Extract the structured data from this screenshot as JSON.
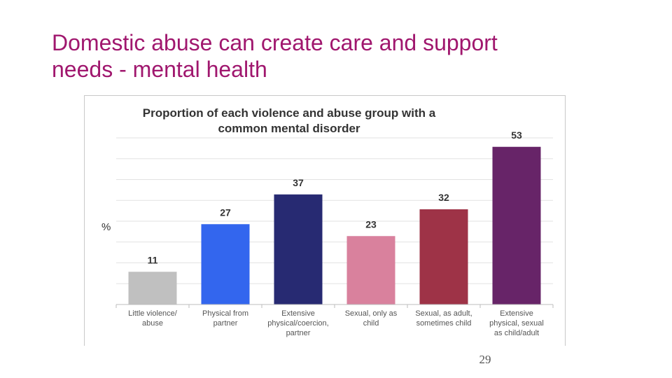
{
  "slide": {
    "title_line1": "Domestic abuse can create care and support",
    "title_line2": "needs - mental health",
    "page_number": "29"
  },
  "colors": {
    "title": "#a0176e",
    "gridline": "#e2e2e2",
    "axis": "#bdbdbd",
    "text": "#333333"
  },
  "chart_data": {
    "type": "bar",
    "title_lines": [
      "Proportion of each violence and abuse group with a",
      "common mental disorder"
    ],
    "ylabel": "%",
    "ylim": [
      0,
      56
    ],
    "grid": true,
    "categories": [
      "Little violence/ abuse",
      "Physical from partner",
      "Extensive physical/coercion, partner",
      "Sexual, only as child",
      "Sexual, as adult, sometimes child",
      "Extensive physical, sexual as child/adult"
    ],
    "category_lines": [
      [
        "Little violence/",
        "abuse"
      ],
      [
        "Physical from",
        "partner"
      ],
      [
        "Extensive",
        "physical/coercion,",
        "partner"
      ],
      [
        "Sexual, only as",
        "child"
      ],
      [
        "Sexual, as adult,",
        "sometimes child"
      ],
      [
        "Extensive",
        "physical, sexual",
        "as child/adult"
      ]
    ],
    "values": [
      11,
      27,
      37,
      23,
      32,
      53
    ],
    "bar_colors": [
      "#c0c0c0",
      "#3366ee",
      "#272a72",
      "#d9819d",
      "#9e3347",
      "#672468"
    ]
  }
}
